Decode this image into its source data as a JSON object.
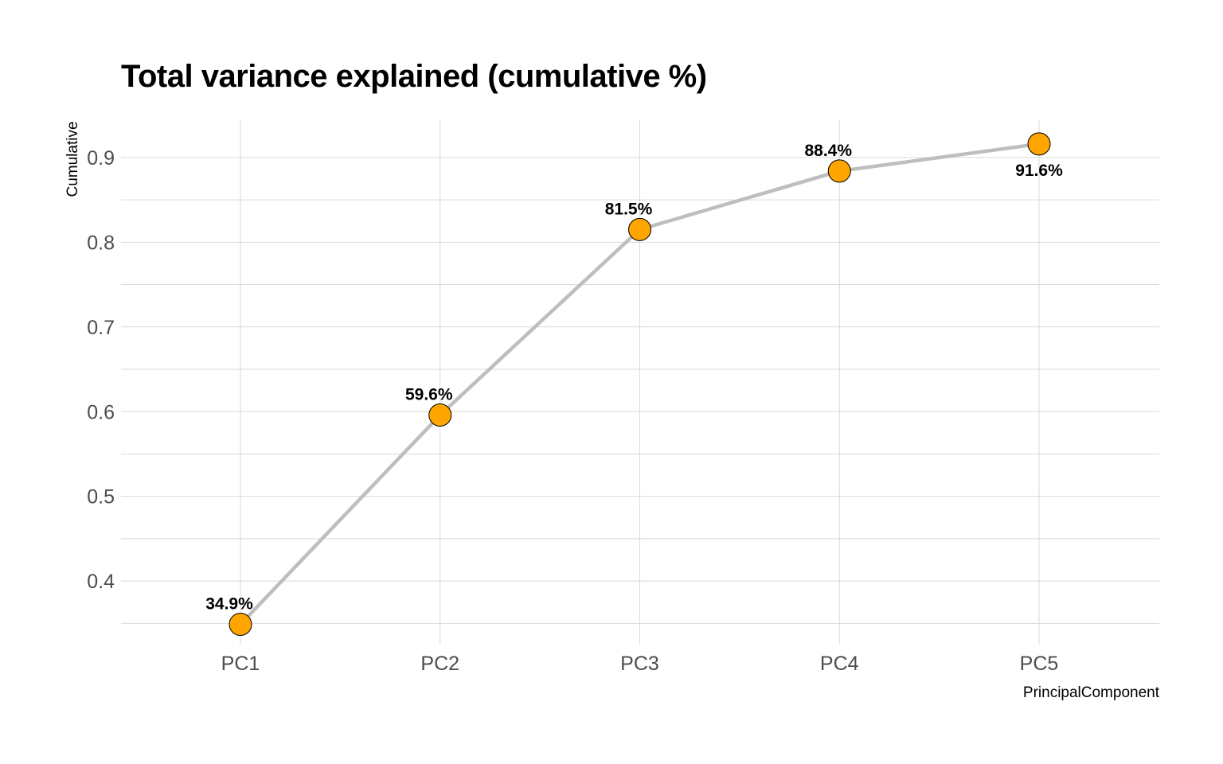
{
  "chart_data": {
    "type": "line",
    "title": "Total variance explained (cumulative %)",
    "xlabel": "PrincipalComponent",
    "ylabel": "Cumulative",
    "categories": [
      "PC1",
      "PC2",
      "PC3",
      "PC4",
      "PC5"
    ],
    "values": [
      0.349,
      0.596,
      0.815,
      0.884,
      0.916
    ],
    "data_labels": [
      "34.9%",
      "59.6%",
      "81.5%",
      "88.4%",
      "91.6%"
    ],
    "ylim": [
      0.325,
      0.945
    ],
    "yticks": [
      0.4,
      0.5,
      0.6,
      0.7,
      0.8,
      0.9
    ],
    "ytick_labels": [
      "0.4",
      "0.5",
      "0.6",
      "0.7",
      "0.8",
      "0.9"
    ],
    "grid": true,
    "legend": "none",
    "colors": {
      "line": "#bebebe",
      "marker_fill": "#ffa500",
      "marker_stroke": "#000000",
      "grid": "#d9d9d9"
    }
  }
}
